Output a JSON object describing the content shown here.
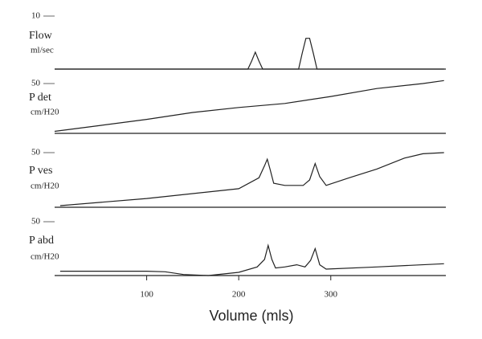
{
  "chart_data": [
    {
      "type": "line",
      "ylabel": [
        "Flow",
        "ml/sec"
      ],
      "x": [
        0,
        210,
        214,
        218,
        222,
        226,
        265,
        269,
        273,
        277,
        281,
        285,
        423
      ],
      "values": [
        0,
        0,
        1.5,
        3.2,
        1.5,
        0,
        0,
        3,
        5.8,
        5.8,
        3,
        0,
        0
      ],
      "xlim": [
        0,
        425
      ],
      "ylim": [
        0,
        10
      ],
      "yticks": [
        10
      ],
      "color": "#222"
    },
    {
      "type": "line",
      "ylabel": [
        "P det",
        "cm/H20"
      ],
      "x": [
        0,
        50,
        100,
        150,
        200,
        250,
        300,
        350,
        400,
        423
      ],
      "values": [
        2,
        8,
        14,
        21,
        26,
        30,
        37,
        45,
        50,
        53
      ],
      "xlim": [
        0,
        425
      ],
      "ylim": [
        0,
        50
      ],
      "yticks": [
        50
      ],
      "color": "#222"
    },
    {
      "type": "line",
      "ylabel": [
        "P ves",
        "cm/H20"
      ],
      "x": [
        6,
        100,
        200,
        222,
        228,
        231,
        234,
        238,
        250,
        270,
        277,
        283,
        288,
        295,
        320,
        350,
        380,
        400,
        423
      ],
      "values": [
        1.5,
        8,
        17,
        27,
        38,
        44,
        35,
        22,
        20,
        20,
        25,
        40,
        28,
        20,
        27,
        35,
        45,
        49,
        50
      ],
      "xlim": [
        0,
        425
      ],
      "ylim": [
        0,
        50
      ],
      "yticks": [
        50
      ],
      "color": "#222"
    },
    {
      "type": "line",
      "ylabel": [
        "P abd",
        "cm/H20"
      ],
      "x": [
        6,
        100,
        120,
        140,
        167,
        200,
        220,
        228,
        232,
        236,
        240,
        250,
        263,
        272,
        278,
        283,
        288,
        295,
        350,
        423
      ],
      "values": [
        4,
        4,
        3.5,
        1,
        0,
        3,
        8,
        15,
        28,
        15,
        7,
        8,
        10,
        8,
        14,
        25,
        10,
        6,
        8,
        11
      ],
      "xlim": [
        0,
        425
      ],
      "ylim": [
        0,
        50
      ],
      "yticks": [
        50
      ],
      "color": "#222",
      "xticks": [
        100,
        200,
        300
      ],
      "xlabel": "Volume (mls)"
    }
  ]
}
